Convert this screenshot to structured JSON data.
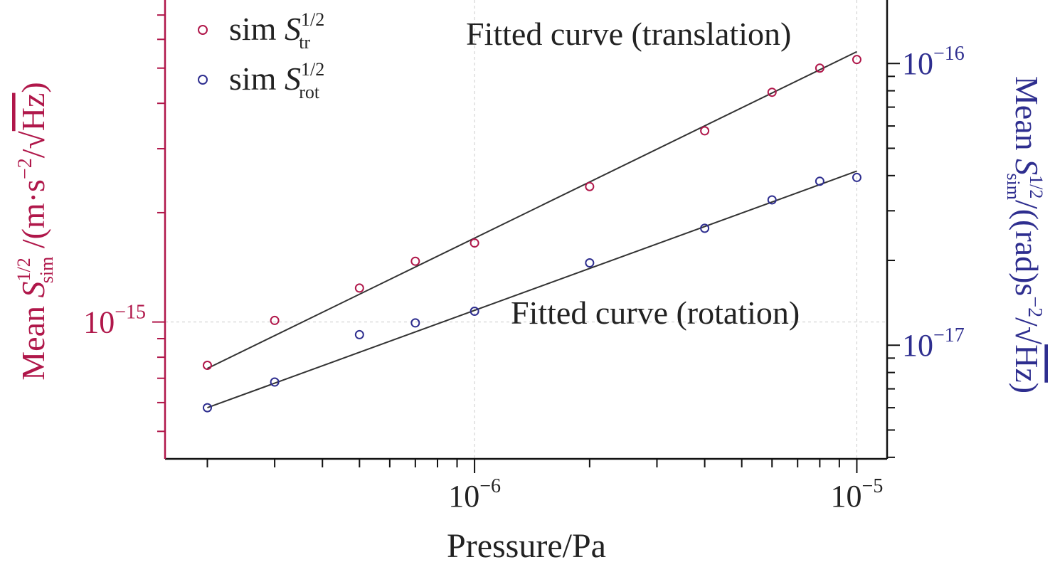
{
  "chart_data": {
    "type": "scatter",
    "xlabel": "Pressure/Pa",
    "x_scale": "log",
    "x_ticks": [
      {
        "value": 1e-06,
        "mantissa": "10",
        "exponent": "−6"
      },
      {
        "value": 1e-05,
        "mantissa": "10",
        "exponent": "−5"
      }
    ],
    "y_left": {
      "label_parts": {
        "prefix": "Mean ",
        "symbol": "S",
        "sup": "1/2",
        "sub": "sim",
        "unit_pre": " /(m·s",
        "unit_exp": "−2",
        "unit_mid": "/",
        "unit_root": "Hz",
        "unit_end": ")"
      },
      "scale": "log",
      "color": "#b0174a",
      "ticks": [
        {
          "value": 1e-15,
          "mantissa": "10",
          "exponent": "−15"
        }
      ]
    },
    "y_right": {
      "label_parts": {
        "prefix": "Mean ",
        "symbol": "S",
        "sup": "1/2",
        "sub": "sim",
        "unit_pre": "/((rad)s",
        "unit_exp": "−2",
        "unit_mid": "/",
        "unit_root": "Hz",
        "unit_end": ")"
      },
      "scale": "log",
      "color": "#2e2e8f",
      "ticks": [
        {
          "value": 1e-16,
          "mantissa": "10",
          "exponent": "−16"
        },
        {
          "value": 1e-17,
          "mantissa": "10",
          "exponent": "−17"
        }
      ]
    },
    "grid": true,
    "legend_position": "top-left",
    "series": [
      {
        "name_parts": {
          "prefix": "sim ",
          "symbol": "S",
          "sup": "1/2",
          "sub": "tr"
        },
        "axis": "left",
        "color": "#b0174a",
        "x": [
          2e-07,
          3e-07,
          5e-07,
          7e-07,
          1e-06,
          2e-06,
          4e-06,
          6e-06,
          8e-06,
          1e-05
        ],
        "y": [
          7.6e-16,
          1.01e-15,
          1.24e-15,
          1.47e-15,
          1.65e-15,
          2.36e-15,
          3.36e-15,
          4.29e-15,
          5e-15,
          5.28e-15
        ]
      },
      {
        "name_parts": {
          "prefix": "sim ",
          "symbol": "S",
          "sup": "1/2",
          "sub": "rot"
        },
        "axis": "right",
        "color": "#2e2e8f",
        "x": [
          2e-07,
          3e-07,
          5e-07,
          7e-07,
          1e-06,
          2e-06,
          4e-06,
          6e-06,
          8e-06,
          1e-05
        ],
        "y": [
          6e-18,
          7.4e-18,
          1.09e-17,
          1.2e-17,
          1.32e-17,
          1.96e-17,
          2.6e-17,
          3.28e-17,
          3.82e-17,
          3.94e-17
        ]
      }
    ],
    "fit_lines": [
      {
        "label": "Fitted curve (translation)",
        "axis": "left",
        "x": [
          2e-07,
          1e-05
        ],
        "y": [
          7.45e-16,
          5.55e-15
        ],
        "color": "#333333"
      },
      {
        "label": "Fitted curve (rotation)",
        "axis": "right",
        "x": [
          2e-07,
          1e-05
        ],
        "y": [
          6e-18,
          4.15e-17
        ],
        "color": "#333333"
      }
    ]
  }
}
